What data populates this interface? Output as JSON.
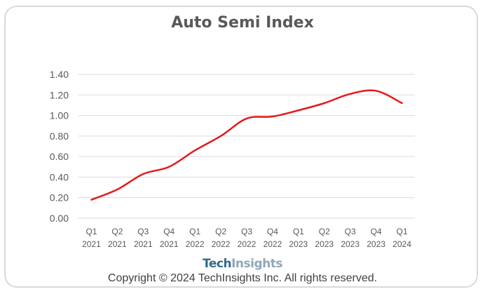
{
  "chart_data": {
    "type": "line",
    "title": "Auto Semi Index",
    "xlabel": "",
    "ylabel": "",
    "categories": [
      [
        "Q1",
        "2021"
      ],
      [
        "Q2",
        "2021"
      ],
      [
        "Q3",
        "2021"
      ],
      [
        "Q4",
        "2021"
      ],
      [
        "Q1",
        "2022"
      ],
      [
        "Q2",
        "2022"
      ],
      [
        "Q3",
        "2022"
      ],
      [
        "Q4",
        "2022"
      ],
      [
        "Q1",
        "2023"
      ],
      [
        "Q2",
        "2023"
      ],
      [
        "Q3",
        "2023"
      ],
      [
        "Q4",
        "2023"
      ],
      [
        "Q1",
        "2024"
      ]
    ],
    "series": [
      {
        "values": [
          0.18,
          0.28,
          0.43,
          0.5,
          0.66,
          0.8,
          0.97,
          0.99,
          1.05,
          1.12,
          1.21,
          1.24,
          1.12
        ],
        "color": "#e31a1c"
      }
    ],
    "yticks": [
      "0.00",
      "0.20",
      "0.40",
      "0.60",
      "0.80",
      "1.00",
      "1.20",
      "1.40"
    ],
    "ylim": [
      0,
      1.4
    ],
    "grid": true,
    "legend": "none"
  },
  "footer": {
    "logo_part1": "Tech",
    "logo_part2": "Insights",
    "copyright": "Copyright © 2024 TechInsights Inc.  All rights reserved."
  }
}
